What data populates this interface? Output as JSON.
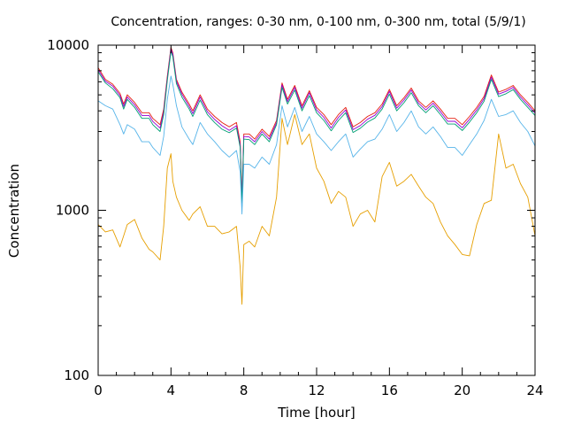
{
  "chart_data": {
    "type": "line",
    "title": "Concentration, ranges: 0-30 nm, 0-100 nm, 0-300 nm, total (5/9/1)",
    "xlabel": "Time [hour]",
    "ylabel": "Concentration",
    "xlim": [
      0,
      24
    ],
    "ylim": [
      100,
      10000
    ],
    "yscale": "log",
    "grid": false,
    "legend": "none",
    "x_ticks": [
      "0",
      "4",
      "8",
      "12",
      "16",
      "20",
      "24"
    ],
    "y_ticks": [
      "100",
      "1000",
      "10000"
    ],
    "x": [
      0,
      0.4,
      0.8,
      1.2,
      1.4,
      1.6,
      2.0,
      2.4,
      2.8,
      3.0,
      3.4,
      3.6,
      3.8,
      4.0,
      4.1,
      4.3,
      4.6,
      5.0,
      5.2,
      5.6,
      6.0,
      6.4,
      6.8,
      7.2,
      7.6,
      7.8,
      7.9,
      8.0,
      8.3,
      8.6,
      9.0,
      9.4,
      9.8,
      10.1,
      10.4,
      10.8,
      11.2,
      11.6,
      12.0,
      12.4,
      12.8,
      13.2,
      13.6,
      14.0,
      14.4,
      14.8,
      15.2,
      15.6,
      16.0,
      16.4,
      16.8,
      17.2,
      17.6,
      18.0,
      18.4,
      18.8,
      19.2,
      19.6,
      20.0,
      20.4,
      20.8,
      21.2,
      21.6,
      22.0,
      22.4,
      22.8,
      23.2,
      23.6,
      24.0
    ],
    "series": [
      {
        "color": "#e51e10",
        "values": [
          7300,
          6200,
          5800,
          5100,
          4400,
          5000,
          4500,
          3900,
          3900,
          3600,
          3300,
          4100,
          6500,
          9700,
          9000,
          6200,
          5200,
          4400,
          4000,
          5000,
          4100,
          3700,
          3400,
          3200,
          3400,
          2600,
          1200,
          2900,
          2900,
          2700,
          3100,
          2800,
          3500,
          5900,
          4700,
          5700,
          4300,
          5300,
          4200,
          3800,
          3300,
          3800,
          4200,
          3200,
          3400,
          3700,
          3900,
          4400,
          5400,
          4300,
          4800,
          5500,
          4600,
          4200,
          4600,
          4100,
          3600,
          3600,
          3300,
          3700,
          4200,
          4900,
          6600,
          5200,
          5400,
          5700,
          5000,
          4500,
          4000
        ]
      },
      {
        "color": "#9400d3",
        "values": [
          7100,
          6050,
          5650,
          4950,
          4250,
          4850,
          4350,
          3750,
          3750,
          3450,
          3150,
          3950,
          6300,
          9500,
          8800,
          6050,
          5050,
          4250,
          3850,
          4850,
          3950,
          3550,
          3250,
          3050,
          3250,
          2480,
          1120,
          2800,
          2780,
          2600,
          3000,
          2700,
          3400,
          5750,
          4550,
          5550,
          4150,
          5150,
          4050,
          3650,
          3150,
          3650,
          4050,
          3080,
          3260,
          3560,
          3760,
          4250,
          5250,
          4150,
          4650,
          5350,
          4450,
          4050,
          4450,
          3950,
          3460,
          3460,
          3160,
          3560,
          4050,
          4750,
          6400,
          5050,
          5250,
          5550,
          4850,
          4350,
          3880
        ]
      },
      {
        "color": "#009e73",
        "values": [
          6900,
          5900,
          5450,
          4800,
          4100,
          4700,
          4200,
          3600,
          3600,
          3300,
          3000,
          3800,
          6100,
          9200,
          8500,
          5850,
          4850,
          4100,
          3700,
          4650,
          3800,
          3400,
          3100,
          2950,
          3150,
          2400,
          1050,
          2700,
          2680,
          2500,
          2900,
          2600,
          3300,
          5550,
          4400,
          5350,
          4000,
          4950,
          3900,
          3500,
          3030,
          3500,
          3900,
          2960,
          3140,
          3420,
          3620,
          4100,
          5050,
          4000,
          4480,
          5150,
          4300,
          3900,
          4300,
          3800,
          3330,
          3330,
          3040,
          3420,
          3900,
          4580,
          6200,
          4880,
          5080,
          5380,
          4700,
          4200,
          3750
        ]
      },
      {
        "color": "#56b4e9",
        "values": [
          4600,
          4300,
          4100,
          3300,
          2900,
          3300,
          3100,
          2600,
          2600,
          2400,
          2150,
          2800,
          4700,
          6500,
          5800,
          4300,
          3200,
          2700,
          2500,
          3400,
          2900,
          2600,
          2300,
          2100,
          2300,
          1700,
          950,
          1900,
          1900,
          1800,
          2100,
          1900,
          2500,
          4300,
          3200,
          4200,
          3000,
          3700,
          2900,
          2600,
          2300,
          2600,
          2900,
          2100,
          2350,
          2600,
          2700,
          3100,
          3800,
          3000,
          3400,
          4000,
          3200,
          2900,
          3200,
          2800,
          2400,
          2400,
          2150,
          2500,
          2900,
          3500,
          4700,
          3700,
          3800,
          4000,
          3400,
          3000,
          2450
        ]
      },
      {
        "color": "#e69f00",
        "values": [
          820,
          740,
          760,
          600,
          700,
          820,
          880,
          680,
          580,
          560,
          500,
          800,
          1800,
          2200,
          1500,
          1200,
          1000,
          870,
          950,
          1050,
          800,
          800,
          720,
          740,
          800,
          450,
          270,
          620,
          650,
          600,
          800,
          700,
          1200,
          3600,
          2500,
          3800,
          2500,
          2900,
          1800,
          1500,
          1100,
          1300,
          1200,
          800,
          950,
          1000,
          850,
          1600,
          1950,
          1400,
          1500,
          1650,
          1400,
          1200,
          1100,
          850,
          700,
          620,
          540,
          530,
          820,
          1100,
          1150,
          2900,
          1800,
          1900,
          1450,
          1200,
          700
        ]
      }
    ]
  }
}
